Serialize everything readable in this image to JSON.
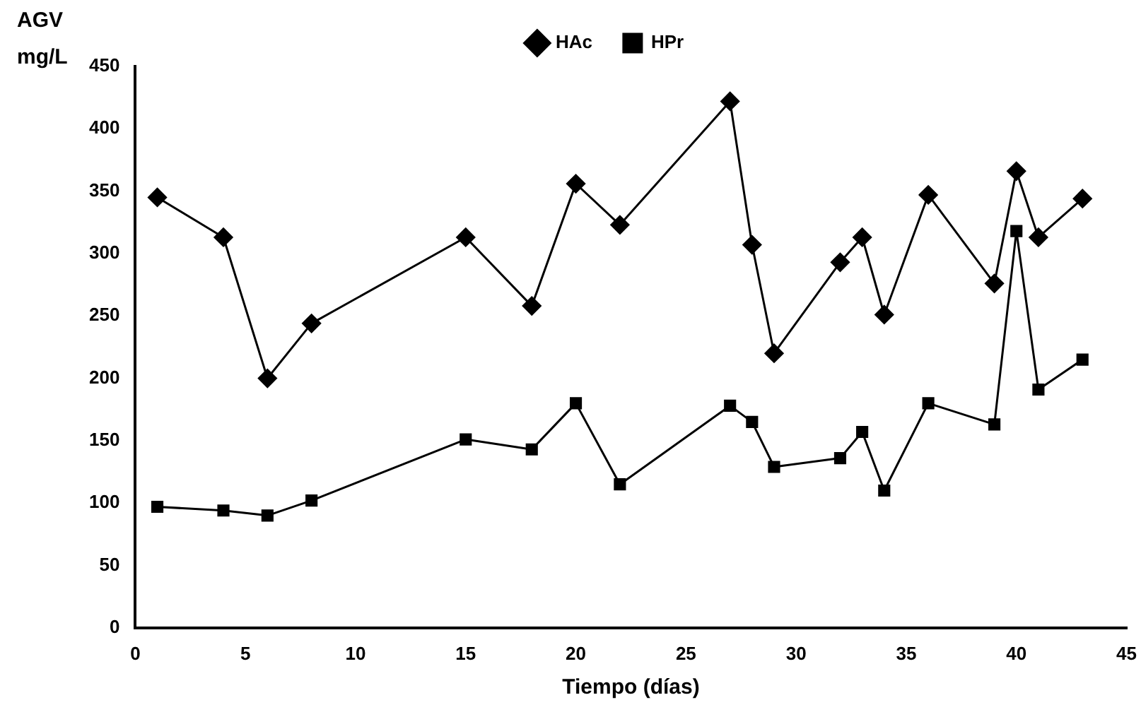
{
  "chart_data": {
    "type": "line",
    "xlabel": "Tiempo (días)",
    "ylabel": "AGV mg/L",
    "x": [
      1,
      4,
      6,
      8,
      15,
      18,
      20,
      22,
      27,
      28,
      29,
      32,
      33,
      34,
      36,
      39,
      40,
      41,
      43
    ],
    "series": [
      {
        "name": "HAc",
        "color": "#000000",
        "marker": "diamond",
        "values": [
          345,
          313,
          200,
          244,
          313,
          258,
          356,
          323,
          422,
          307,
          220,
          293,
          313,
          251,
          347,
          276,
          366,
          313,
          344
        ]
      },
      {
        "name": "HPr",
        "color": "#000000",
        "marker": "square",
        "values": [
          97,
          94,
          90,
          102,
          151,
          143,
          180,
          115,
          178,
          165,
          129,
          136,
          157,
          110,
          180,
          163,
          318,
          191,
          215
        ]
      }
    ],
    "xlim": [
      0,
      45
    ],
    "xticks": [
      0,
      5,
      10,
      15,
      20,
      25,
      30,
      35,
      40,
      45
    ],
    "ylim": [
      0,
      450
    ],
    "yticks": [
      0,
      50,
      100,
      150,
      200,
      250,
      300,
      350,
      400,
      450
    ],
    "grid": false,
    "legend": "top",
    "line_style": "solid"
  }
}
